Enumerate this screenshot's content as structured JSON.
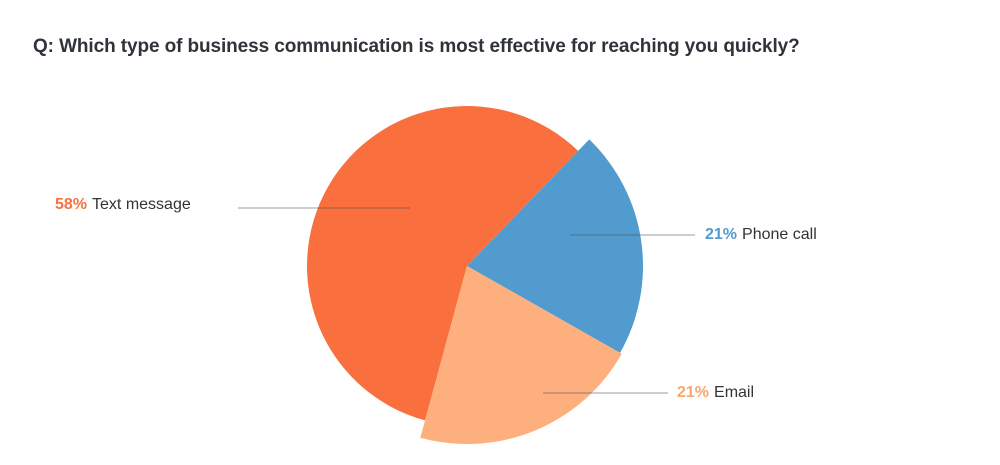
{
  "chart_data": {
    "type": "pie",
    "title": "Q: Which type of business communication is most effective for reaching you quickly?",
    "slices": [
      {
        "label": "Phone call",
        "pct_label": "21%",
        "value": 21,
        "color": "#529BCF"
      },
      {
        "label": "Email",
        "pct_label": "21%",
        "value": 21,
        "color": "#FDB07D"
      },
      {
        "label": "Text message",
        "pct_label": "58%",
        "value": 58,
        "color": "#F9703E"
      }
    ],
    "legend": "none, labels beside slices with leader lines"
  }
}
